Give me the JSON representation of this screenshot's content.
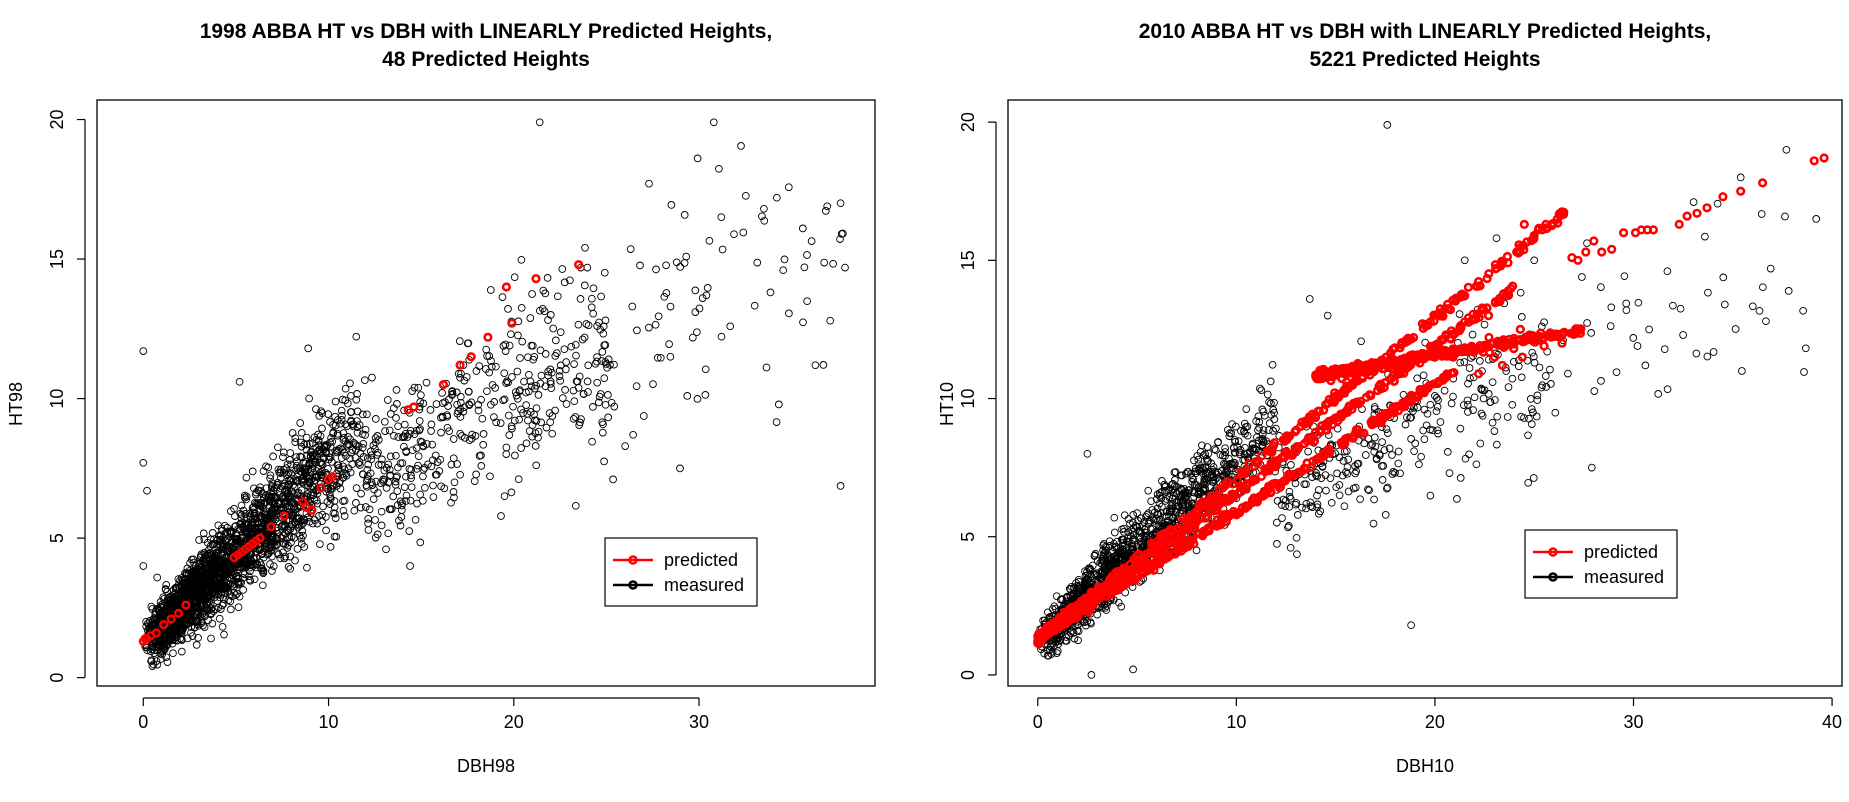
{
  "colors": {
    "predicted": "#ff0000",
    "measured": "#000000"
  },
  "chart_data": [
    {
      "type": "scatter",
      "title_lines": [
        "1998 ABBA HT vs DBH with LINEARLY Predicted Heights,",
        "48 Predicted Heights"
      ],
      "xlabel": "DBH98",
      "ylabel": "HT98",
      "xlim": [
        -2.5,
        39.5
      ],
      "ylim": [
        -0.3,
        20.7
      ],
      "xticks": [
        0,
        10,
        20,
        30
      ],
      "yticks": [
        0,
        5,
        10,
        15,
        20
      ],
      "grid": false,
      "legend": {
        "position": "bottom-right",
        "entries": [
          "predicted",
          "measured"
        ]
      },
      "series": [
        {
          "name": "measured",
          "generator": {
            "n": 2600,
            "xmax": 38,
            "slope_fast": 0.7,
            "slope_slow": 0.55,
            "noise": 1.1
          },
          "x": [
            0.0,
            0.0,
            0.2,
            0.0,
            5.2,
            8.9,
            21.4,
            30.8,
            35.6,
            37.7,
            34.2,
            33.5,
            31.2,
            27.3,
            30.4,
            30.2,
            29.8,
            22.0,
            26.4,
            24.5,
            19.5,
            16.8,
            14.4,
            13.1
          ],
          "y": [
            11.7,
            7.7,
            6.7,
            4.0,
            10.6,
            11.8,
            19.9,
            19.9,
            16.1,
            15.9,
            17.2,
            16.8,
            16.5,
            17.7,
            13.7,
            13.6,
            13.1,
            13.0,
            13.3,
            12.6,
            6.5,
            7.0,
            4.0,
            4.6
          ]
        },
        {
          "name": "predicted",
          "x": [
            0.0,
            0.1,
            0.2,
            0.4,
            0.7,
            1.1,
            1.5,
            1.9,
            2.3,
            4.9,
            5.1,
            5.3,
            5.5,
            5.7,
            5.9,
            6.1,
            6.3,
            6.9,
            7.6,
            8.6,
            8.8,
            9.1,
            9.6,
            10.0,
            10.2,
            14.3,
            14.6,
            16.2,
            17.1,
            17.7,
            18.6,
            19.6,
            19.9,
            21.2,
            23.5
          ],
          "y": [
            1.3,
            1.4,
            1.4,
            1.5,
            1.6,
            1.9,
            2.1,
            2.3,
            2.6,
            4.3,
            4.4,
            4.5,
            4.6,
            4.7,
            4.8,
            4.9,
            5.0,
            5.4,
            5.8,
            6.3,
            6.1,
            6.0,
            6.8,
            7.1,
            7.2,
            9.6,
            9.7,
            10.5,
            11.2,
            11.5,
            12.2,
            14.0,
            12.7,
            14.3,
            14.8
          ]
        }
      ]
    },
    {
      "type": "scatter",
      "title_lines": [
        "2010 ABBA HT vs DBH with LINEARLY Predicted Heights,",
        "5221 Predicted Heights"
      ],
      "xlabel": "DBH10",
      "ylabel": "HT10",
      "xlim": [
        -1.5,
        40.5
      ],
      "ylim": [
        -0.4,
        20.8
      ],
      "xticks": [
        0,
        10,
        20,
        30,
        40
      ],
      "yticks": [
        0,
        5,
        10,
        15,
        20
      ],
      "grid": false,
      "legend": {
        "position": "bottom-right",
        "entries": [
          "predicted",
          "measured"
        ]
      },
      "series": [
        {
          "name": "measured",
          "generator": {
            "n": 1700,
            "xmax": 39,
            "slope_fast": 0.72,
            "slope_slow": 0.5,
            "noise": 0.9
          },
          "x": [
            17.6,
            37.7,
            39.2,
            35.4,
            34.6,
            32.5,
            30.2,
            30.6,
            27.9,
            18.8,
            2.5,
            2.7,
            4.8,
            15.2,
            22.4,
            21.5,
            25.0,
            23.1,
            13.7,
            14.6,
            20.0
          ],
          "y": [
            19.9,
            19.0,
            16.5,
            18.0,
            13.4,
            12.3,
            11.9,
            11.2,
            7.5,
            1.8,
            8.0,
            0.0,
            0.2,
            6.5,
            10.3,
            15.0,
            15.0,
            15.8,
            13.6,
            13.0,
            10.1
          ]
        },
        {
          "name": "predicted",
          "generator": {
            "n": 1500,
            "lines": [
              {
                "x": [
                  0,
                  26.5
                ],
                "y": [
                  1.3,
                  16.7
                ]
              },
              {
                "x": [
                  0,
                  24.0
                ],
                "y": [
                  1.3,
                  14.0
                ]
              },
              {
                "x": [
                  0,
                  21.0
                ],
                "y": [
                  1.3,
                  11.0
                ]
              },
              {
                "x": [
                  14.0,
                  27.5
                ],
                "y": [
                  10.8,
                  12.5
                ]
              }
            ]
          },
          "x": [
            24.5,
            25.4,
            26.3,
            26.9,
            27.2,
            27.6,
            28.0,
            28.4,
            28.9,
            29.5,
            30.1,
            30.4,
            30.7,
            31.0,
            32.3,
            32.7,
            33.2,
            33.7,
            34.5,
            35.4,
            36.5,
            39.1,
            39.6,
            23.4,
            24.4,
            25.5,
            26.4,
            22.2,
            23.0,
            24.3,
            22.7
          ],
          "y": [
            16.3,
            16.1,
            16.7,
            15.1,
            15.0,
            15.3,
            15.7,
            15.3,
            15.4,
            16.0,
            16.0,
            16.1,
            16.1,
            16.1,
            16.3,
            16.6,
            16.7,
            16.9,
            17.3,
            17.5,
            17.8,
            18.6,
            18.7,
            11.2,
            11.5,
            11.9,
            12.0,
            10.9,
            11.5,
            12.5,
            13.0
          ]
        }
      ]
    }
  ]
}
